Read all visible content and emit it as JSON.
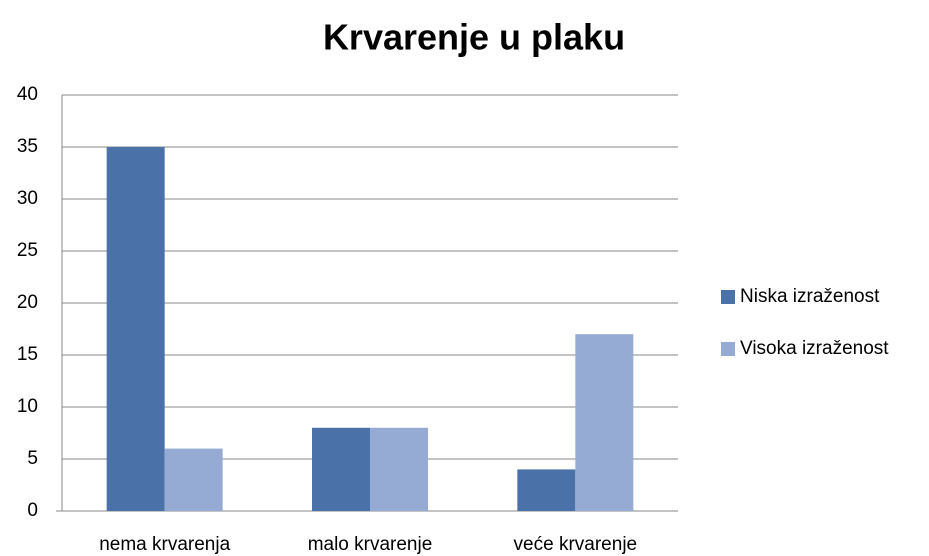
{
  "chart_data": {
    "type": "bar",
    "title": "Krvarenje u plaku",
    "categories": [
      "nema krvarenja",
      "malo krvarenje",
      "veće krvarenje"
    ],
    "series": [
      {
        "name": "Niska izraženost",
        "color": "#4a72a8",
        "values": [
          35,
          8,
          4
        ]
      },
      {
        "name": "Visoka izraženost",
        "color": "#95abd3",
        "values": [
          6,
          8,
          17
        ]
      }
    ],
    "ylim": [
      0,
      40
    ],
    "yticks": [
      0,
      5,
      10,
      15,
      20,
      25,
      30,
      35,
      40
    ],
    "grid": true,
    "legend": "right"
  }
}
